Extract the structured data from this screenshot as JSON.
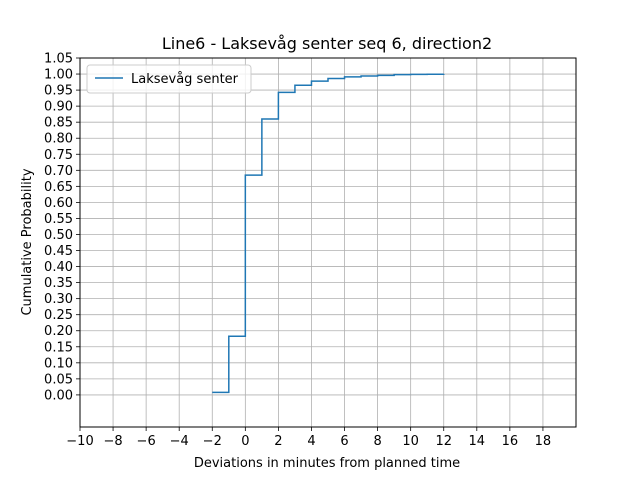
{
  "chart_data": {
    "type": "line",
    "step": "post",
    "title": "Line6 - Laksevåg senter seq 6, direction2",
    "xlabel": "Deviations in minutes from planned time",
    "ylabel": "Cumulative Probability",
    "xlim": [
      -10,
      20
    ],
    "ylim": [
      -0.1,
      1.05
    ],
    "xticks": [
      "−10",
      "−8",
      "−6",
      "−4",
      "−2",
      "0",
      "2",
      "4",
      "6",
      "8",
      "10",
      "12",
      "14",
      "16",
      "18"
    ],
    "xtick_values": [
      -10,
      -8,
      -6,
      -4,
      -2,
      0,
      2,
      4,
      6,
      8,
      10,
      12,
      14,
      16,
      18
    ],
    "yticks": [
      "0.00",
      "0.05",
      "0.10",
      "0.15",
      "0.20",
      "0.25",
      "0.30",
      "0.35",
      "0.40",
      "0.45",
      "0.50",
      "0.55",
      "0.60",
      "0.65",
      "0.70",
      "0.75",
      "0.80",
      "0.85",
      "0.90",
      "0.95",
      "1.00",
      "1.05"
    ],
    "ytick_values": [
      0,
      0.05,
      0.1,
      0.15,
      0.2,
      0.25,
      0.3,
      0.35,
      0.4,
      0.45,
      0.5,
      0.55,
      0.6,
      0.65,
      0.7,
      0.75,
      0.8,
      0.85,
      0.9,
      0.95,
      1.0,
      1.05
    ],
    "grid": true,
    "legend_position": "top-left",
    "series": [
      {
        "name": "Laksevåg senter",
        "color": "#1f77b4",
        "x": [
          -2,
          -1,
          0,
          1,
          2,
          3,
          4,
          5,
          6,
          7,
          8,
          9,
          10,
          11,
          12
        ],
        "y": [
          0.008,
          0.183,
          0.685,
          0.86,
          0.943,
          0.965,
          0.978,
          0.986,
          0.991,
          0.994,
          0.996,
          0.998,
          0.999,
          0.9995,
          1.0
        ]
      }
    ]
  }
}
